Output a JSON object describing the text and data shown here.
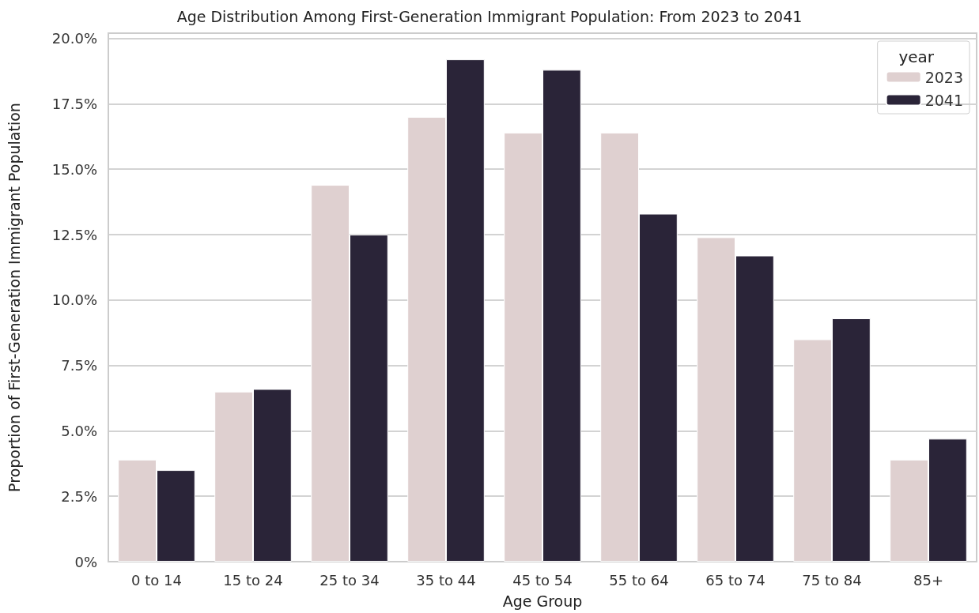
{
  "chart_data": {
    "type": "bar",
    "title": "Age Distribution Among First-Generation Immigrant Population: From 2023 to 2041",
    "xlabel": "Age Group",
    "ylabel": "Proportion of First-Generation Immigrant Population",
    "legend_title": "year",
    "categories": [
      "0 to 14",
      "15 to 24",
      "25 to 34",
      "35 to 44",
      "45 to 54",
      "55 to 64",
      "65 to 74",
      "75 to 84",
      "85+"
    ],
    "series": [
      {
        "name": "2023",
        "color": "#dfd0d0",
        "values": [
          3.9,
          6.5,
          14.4,
          17.0,
          16.4,
          16.4,
          12.4,
          8.5,
          3.9
        ]
      },
      {
        "name": "2041",
        "color": "#2a2438",
        "values": [
          3.5,
          6.6,
          12.5,
          19.2,
          18.8,
          13.3,
          11.7,
          9.3,
          4.7
        ]
      }
    ],
    "ylim": [
      0,
      20.2
    ],
    "yticks": [
      {
        "value": 0,
        "label": "0%"
      },
      {
        "value": 2.5,
        "label": "2.5%"
      },
      {
        "value": 5,
        "label": "5.0%"
      },
      {
        "value": 7.5,
        "label": "7.5%"
      },
      {
        "value": 10,
        "label": "10.0%"
      },
      {
        "value": 12.5,
        "label": "12.5%"
      },
      {
        "value": 15,
        "label": "15.0%"
      },
      {
        "value": 17.5,
        "label": "17.5%"
      },
      {
        "value": 20,
        "label": "20.0%"
      }
    ],
    "grid": "y",
    "legend": "top right"
  }
}
